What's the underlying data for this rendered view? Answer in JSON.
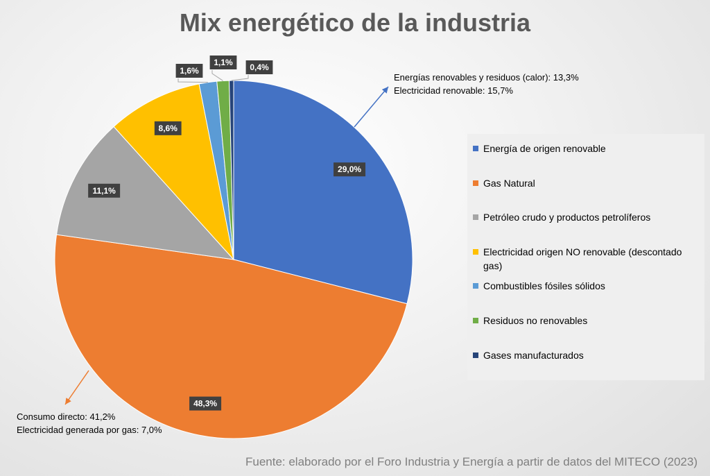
{
  "chart_data": {
    "type": "pie",
    "title": "Mix energético de la industria",
    "categories": [
      "Energía de origen renovable",
      "Gas Natural",
      "Petróleo crudo y productos petrolíferos",
      "Electricidad origen NO renovable (descontado gas)",
      "Combustibles fósiles sólidos",
      "Residuos no renovables",
      "Gases manufacturados"
    ],
    "values": [
      29.0,
      48.3,
      11.1,
      8.6,
      1.6,
      1.1,
      0.4
    ],
    "data_labels": [
      "29,0%",
      "48,3%",
      "11,1%",
      "8,6%",
      "1,6%",
      "1,1%",
      "0,4%"
    ],
    "colors": [
      "#4472c4",
      "#ed7d31",
      "#a5a5a5",
      "#ffc000",
      "#5b9bd5",
      "#70ad47",
      "#264478"
    ],
    "legend_position": "right",
    "annotations": {
      "renewable": [
        "Energías renovables y residuos (calor): 13,3%",
        "Electricidad renovable: 15,7%"
      ],
      "gas": [
        "Consumo directo: 41,2%",
        "Electricidad generada por gas: 7,0%"
      ]
    }
  },
  "source": "Fuente: elaborado por el Foro Industria y Energía a partir de datos del MITECO (2023)"
}
